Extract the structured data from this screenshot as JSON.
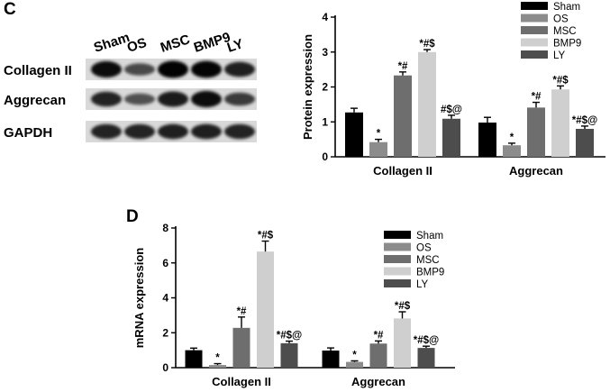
{
  "panel_c": {
    "letter": "C",
    "blot": {
      "lanes": [
        "Sham",
        "OS",
        "MSC",
        "BMP9",
        "LY"
      ],
      "rows": [
        {
          "label": "Collagen II",
          "intensity": [
            0.85,
            0.45,
            0.92,
            0.9,
            0.72
          ]
        },
        {
          "label": "Aggrecan",
          "intensity": [
            0.7,
            0.4,
            0.75,
            0.85,
            0.55
          ]
        },
        {
          "label": "GAPDH",
          "intensity": [
            0.7,
            0.7,
            0.72,
            0.72,
            0.7
          ]
        }
      ]
    }
  },
  "panel_d": {
    "letter": "D"
  },
  "chart_data": [
    {
      "type": "bar",
      "title": "",
      "xlabel": "",
      "ylabel": "Protein expression",
      "ylim": [
        0,
        4
      ],
      "yticks": [
        0,
        1,
        2,
        3,
        4
      ],
      "categories": [
        "Collagen II",
        "Aggrecan"
      ],
      "legend_position": "top-right",
      "series": [
        {
          "name": "Sham",
          "color": "#000000",
          "values": [
            1.27,
            0.98
          ],
          "errors": [
            0.12,
            0.15
          ],
          "annotations": [
            "",
            ""
          ]
        },
        {
          "name": "OS",
          "color": "#8c8c8c",
          "values": [
            0.42,
            0.33
          ],
          "errors": [
            0.08,
            0.06
          ],
          "annotations": [
            "*",
            "*"
          ]
        },
        {
          "name": "MSC",
          "color": "#6e6e6e",
          "values": [
            2.33,
            1.41
          ],
          "errors": [
            0.1,
            0.15
          ],
          "annotations": [
            "*#",
            "*#"
          ]
        },
        {
          "name": "BMP9",
          "color": "#cfcfcf",
          "values": [
            3.0,
            1.93
          ],
          "errors": [
            0.07,
            0.1
          ],
          "annotations": [
            "*#$",
            "*#$"
          ]
        },
        {
          "name": "LY",
          "color": "#4d4d4d",
          "values": [
            1.09,
            0.8
          ],
          "errors": [
            0.1,
            0.08
          ],
          "annotations": [
            "#$@",
            "*#$@"
          ]
        }
      ]
    },
    {
      "type": "bar",
      "title": "",
      "xlabel": "",
      "ylabel": "mRNA expression",
      "ylim": [
        0,
        8
      ],
      "yticks": [
        0,
        2,
        4,
        6,
        8
      ],
      "categories": [
        "Collagen II",
        "Aggrecan"
      ],
      "legend_position": "top-right",
      "series": [
        {
          "name": "Sham",
          "color": "#000000",
          "values": [
            1.0,
            0.98
          ],
          "errors": [
            0.12,
            0.15
          ],
          "annotations": [
            "",
            ""
          ]
        },
        {
          "name": "OS",
          "color": "#8c8c8c",
          "values": [
            0.15,
            0.33
          ],
          "errors": [
            0.08,
            0.06
          ],
          "annotations": [
            "*",
            "*"
          ]
        },
        {
          "name": "MSC",
          "color": "#6e6e6e",
          "values": [
            2.28,
            1.38
          ],
          "errors": [
            0.62,
            0.15
          ],
          "annotations": [
            "*#",
            "*#"
          ]
        },
        {
          "name": "BMP9",
          "color": "#cfcfcf",
          "values": [
            6.65,
            2.82
          ],
          "errors": [
            0.6,
            0.38
          ],
          "annotations": [
            "*#$",
            "*#$"
          ]
        },
        {
          "name": "LY",
          "color": "#4d4d4d",
          "values": [
            1.4,
            1.13
          ],
          "errors": [
            0.12,
            0.1
          ],
          "annotations": [
            "*#$@",
            "*#$@"
          ]
        }
      ]
    }
  ]
}
